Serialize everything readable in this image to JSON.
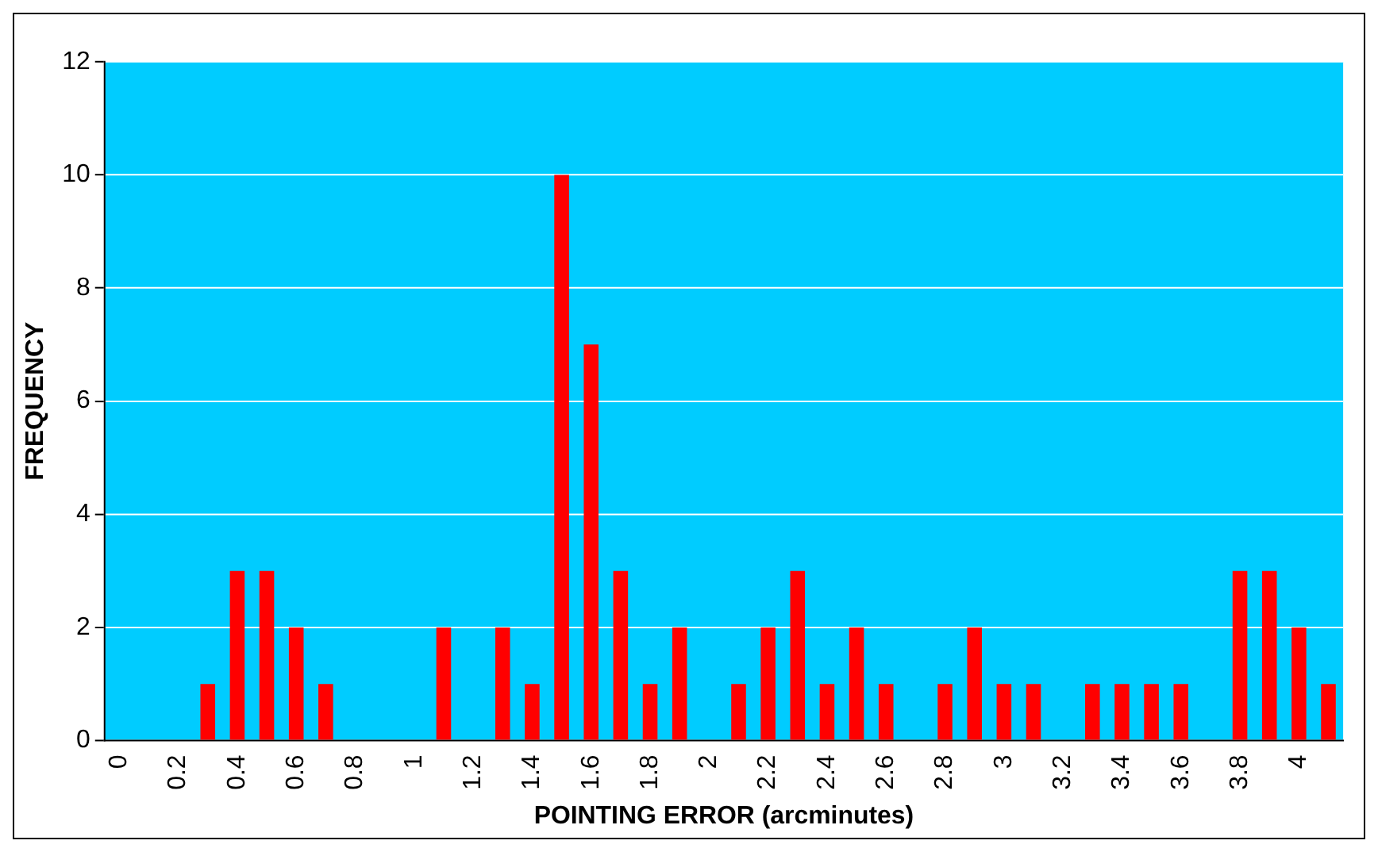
{
  "chart_data": {
    "type": "bar",
    "xlabel": "POINTING ERROR (arcminutes)",
    "ylabel": "FREQUENCY",
    "categories": [
      "0",
      null,
      "0.2",
      null,
      "0.4",
      null,
      "0.6",
      null,
      "0.8",
      null,
      "1",
      null,
      "1.2",
      null,
      "1.4",
      null,
      "1.6",
      null,
      "1.8",
      null,
      "2",
      null,
      "2.2",
      null,
      "2.4",
      null,
      "2.6",
      null,
      "2.8",
      null,
      "3",
      null,
      "3.2",
      null,
      "3.4",
      null,
      "3.6",
      null,
      "3.8",
      null,
      "4",
      null
    ],
    "values": [
      0,
      0,
      0,
      1,
      3,
      3,
      2,
      1,
      0,
      0,
      0,
      2,
      0,
      2,
      1,
      10,
      7,
      3,
      1,
      2,
      0,
      1,
      2,
      3,
      1,
      2,
      1,
      0,
      1,
      2,
      1,
      1,
      0,
      1,
      1,
      1,
      1,
      0,
      3,
      3,
      2,
      1
    ],
    "color": "#ff0000",
    "ylim": [
      0,
      12
    ],
    "yticks": [
      0,
      2,
      4,
      6,
      8,
      10,
      12
    ],
    "grid": "y",
    "legend": false
  }
}
